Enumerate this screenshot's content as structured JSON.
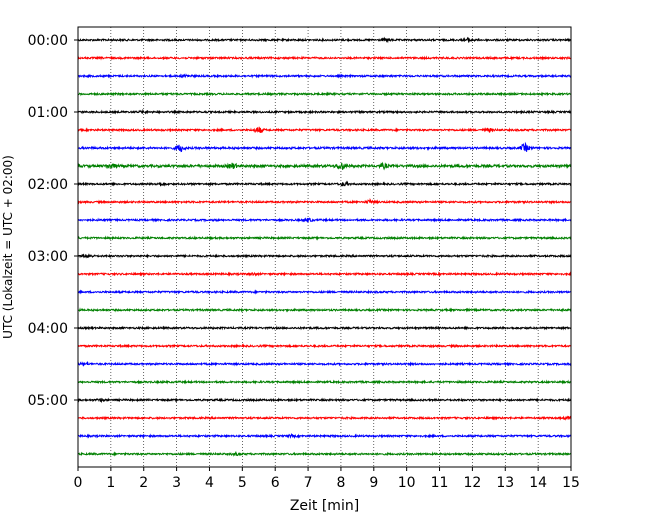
{
  "chart_data": {
    "type": "line",
    "xlabel": "Zeit  [min]",
    "ylabel": "UTC (Lokalzeit = UTC + 02:00)",
    "xlim": [
      0,
      15
    ],
    "x_ticks": [
      0,
      1,
      2,
      3,
      4,
      5,
      6,
      7,
      8,
      9,
      10,
      11,
      12,
      13,
      14,
      15
    ],
    "y_tick_labels": [
      "00:00",
      "01:00",
      "02:00",
      "03:00",
      "04:00",
      "05:00"
    ],
    "y_tick_trace_index": [
      0,
      4,
      8,
      12,
      16,
      20
    ],
    "x_grid": "dotted vertical at each minute",
    "trace_interval_min": 15,
    "trace_colors": [
      "#000000",
      "#ff0000",
      "#0000ff",
      "#008000"
    ],
    "trace_count": 24,
    "series": [
      {
        "start": "00:00",
        "color": "#000000",
        "amplitude": 0.35,
        "events": [
          [
            9.4,
            0.5
          ],
          [
            11.9,
            0.8
          ]
        ]
      },
      {
        "start": "00:15",
        "color": "#ff0000",
        "amplitude": 0.35,
        "events": []
      },
      {
        "start": "00:30",
        "color": "#0000ff",
        "amplitude": 0.35,
        "events": [
          [
            3.3,
            0.5
          ]
        ]
      },
      {
        "start": "00:45",
        "color": "#008000",
        "amplitude": 0.35,
        "events": []
      },
      {
        "start": "01:00",
        "color": "#000000",
        "amplitude": 0.35,
        "events": [
          [
            2.0,
            0.4
          ]
        ]
      },
      {
        "start": "01:15",
        "color": "#ff0000",
        "amplitude": 0.35,
        "events": [
          [
            5.5,
            1.2
          ],
          [
            12.5,
            0.6
          ]
        ]
      },
      {
        "start": "01:30",
        "color": "#0000ff",
        "amplitude": 0.4,
        "events": [
          [
            3.1,
            1.4
          ],
          [
            13.6,
            1.5
          ]
        ]
      },
      {
        "start": "01:45",
        "color": "#008000",
        "amplitude": 0.5,
        "events": [
          [
            1.0,
            0.9
          ],
          [
            4.7,
            1.0
          ],
          [
            8.0,
            1.4
          ],
          [
            9.3,
            0.8
          ]
        ]
      },
      {
        "start": "02:00",
        "color": "#000000",
        "amplitude": 0.35,
        "events": [
          [
            2.5,
            0.6
          ],
          [
            8.1,
            0.6
          ]
        ]
      },
      {
        "start": "02:15",
        "color": "#ff0000",
        "amplitude": 0.35,
        "events": [
          [
            8.9,
            0.7
          ]
        ]
      },
      {
        "start": "02:30",
        "color": "#0000ff",
        "amplitude": 0.35,
        "events": [
          [
            7.0,
            0.6
          ]
        ]
      },
      {
        "start": "02:45",
        "color": "#008000",
        "amplitude": 0.35,
        "events": []
      },
      {
        "start": "03:00",
        "color": "#000000",
        "amplitude": 0.35,
        "events": [
          [
            0.3,
            0.5
          ]
        ]
      },
      {
        "start": "03:15",
        "color": "#ff0000",
        "amplitude": 0.35,
        "events": [
          [
            5.3,
            0.4
          ]
        ]
      },
      {
        "start": "03:30",
        "color": "#0000ff",
        "amplitude": 0.35,
        "events": []
      },
      {
        "start": "03:45",
        "color": "#008000",
        "amplitude": 0.35,
        "events": []
      },
      {
        "start": "04:00",
        "color": "#000000",
        "amplitude": 0.35,
        "events": []
      },
      {
        "start": "04:15",
        "color": "#ff0000",
        "amplitude": 0.35,
        "events": []
      },
      {
        "start": "04:30",
        "color": "#0000ff",
        "amplitude": 0.35,
        "events": [
          [
            0.2,
            0.4
          ]
        ]
      },
      {
        "start": "04:45",
        "color": "#008000",
        "amplitude": 0.35,
        "events": []
      },
      {
        "start": "05:00",
        "color": "#000000",
        "amplitude": 0.35,
        "events": [
          [
            0.7,
            0.4
          ]
        ]
      },
      {
        "start": "05:15",
        "color": "#ff0000",
        "amplitude": 0.35,
        "events": [
          [
            14.9,
            0.4
          ]
        ]
      },
      {
        "start": "05:30",
        "color": "#0000ff",
        "amplitude": 0.35,
        "events": [
          [
            6.5,
            0.4
          ]
        ]
      },
      {
        "start": "05:45",
        "color": "#008000",
        "amplitude": 0.35,
        "events": [
          [
            4.8,
            0.4
          ]
        ]
      }
    ]
  }
}
